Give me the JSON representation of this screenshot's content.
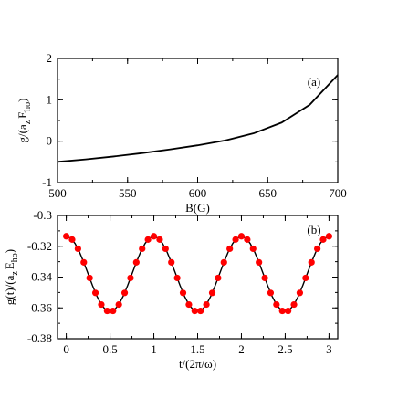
{
  "chart_data": [
    {
      "type": "line",
      "panel_label": "(a)",
      "xlabel": "B(G)",
      "ylabel": "g/(a_z E_ho)",
      "ylabel_parts": {
        "main": "g/(a",
        "sub1": "z",
        "mid": "E",
        "sub2": "ho",
        "end": ")"
      },
      "xlim": [
        500,
        700
      ],
      "ylim": [
        -1,
        2
      ],
      "xticks": [
        500,
        550,
        600,
        650,
        700
      ],
      "yticks": [
        -1,
        0,
        1,
        2
      ],
      "grid": false,
      "series": [
        {
          "x": [
            500,
            520,
            540,
            560,
            580,
            600,
            620,
            640,
            660,
            680,
            700
          ],
          "y": [
            -0.5,
            -0.44,
            -0.37,
            -0.29,
            -0.2,
            -0.1,
            0.02,
            0.19,
            0.45,
            0.88,
            1.6
          ],
          "color": "#000000"
        }
      ]
    },
    {
      "type": "line",
      "panel_label": "(b)",
      "xlabel": "t/(2π/ω)",
      "ylabel": "g(t)/(a_z E_ho)",
      "ylabel_parts": {
        "main": "g(t)/(a",
        "sub1": "z",
        "mid": "E",
        "sub2": "ho",
        "end": ")"
      },
      "xlim": [
        -0.1,
        3.1
      ],
      "ylim": [
        -0.38,
        -0.3
      ],
      "xticks": [
        0,
        0.5,
        1,
        1.5,
        2,
        2.5,
        3
      ],
      "yticks": [
        -0.38,
        -0.36,
        -0.34,
        -0.32,
        -0.3
      ],
      "grid": false,
      "series": [
        {
          "description_free": true,
          "model": {
            "mean": -0.338,
            "amplitude": 0.0245,
            "period": 1
          },
          "x_line": [
            0,
            0.05,
            0.1,
            0.15,
            0.2,
            0.25,
            0.3,
            0.35,
            0.4,
            0.45,
            0.5,
            0.55,
            0.6,
            0.65,
            0.7,
            0.75,
            0.8,
            0.85,
            0.9,
            0.95,
            1,
            1.05,
            1.1,
            1.15,
            1.2,
            1.25,
            1.3,
            1.35,
            1.4,
            1.45,
            1.5,
            1.55,
            1.6,
            1.65,
            1.7,
            1.75,
            1.8,
            1.85,
            1.9,
            1.95,
            2,
            2.05,
            2.1,
            2.15,
            2.2,
            2.25,
            2.3,
            2.35,
            2.4,
            2.45,
            2.5,
            2.55,
            2.6,
            2.65,
            2.7,
            2.75,
            2.8,
            2.85,
            2.9,
            2.95,
            3
          ],
          "x_points": [
            0,
            0.0667,
            0.1333,
            0.2,
            0.2667,
            0.3333,
            0.4,
            0.4667,
            0.5333,
            0.6,
            0.6667,
            0.7333,
            0.8,
            0.8667,
            0.9333,
            1,
            1.0667,
            1.1333,
            1.2,
            1.2667,
            1.3333,
            1.4,
            1.4667,
            1.5333,
            1.6,
            1.6667,
            1.7333,
            1.8,
            1.8667,
            1.9333,
            2,
            2.0667,
            2.1333,
            2.2,
            2.2667,
            2.3333,
            2.4,
            2.4667,
            2.5333,
            2.6,
            2.6667,
            2.7333,
            2.8,
            2.8667,
            2.9333,
            3
          ],
          "line_color": "#000000",
          "marker_color": "#ff0000"
        }
      ]
    }
  ]
}
